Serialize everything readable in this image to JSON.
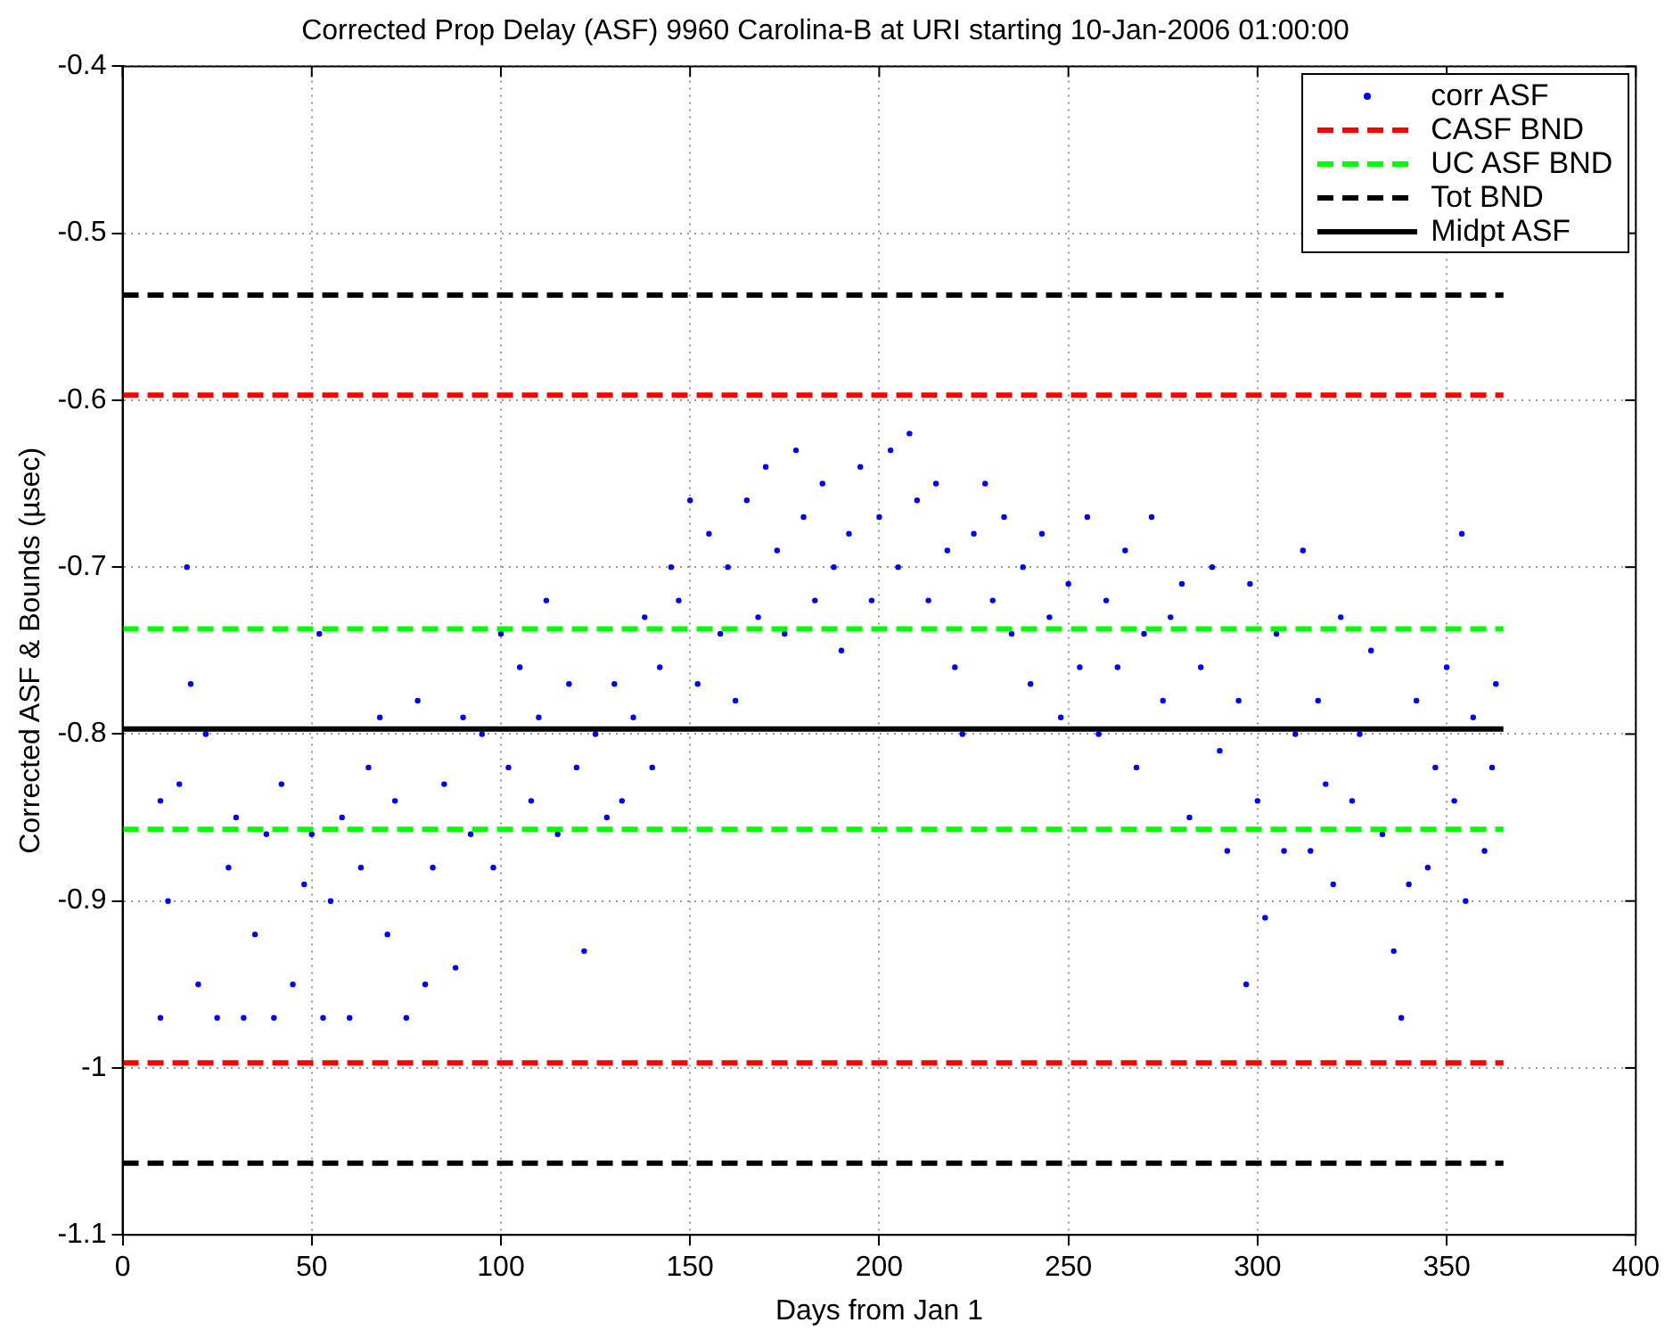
{
  "chart_data": {
    "type": "scatter",
    "title": "Corrected Prop Delay (ASF) 9960 Carolina-B at URI starting 10-Jan-2006 01:00:00",
    "xlabel": "Days from Jan 1",
    "ylabel": "Corrected ASF & Bounds (µsec)",
    "xlim": [
      0,
      400
    ],
    "xticks": [
      0,
      50,
      100,
      150,
      200,
      250,
      300,
      350,
      400
    ],
    "ylim": [
      -1.1,
      -0.4
    ],
    "yticks": [
      -1.1,
      -1,
      -0.9,
      -0.8,
      -0.7,
      -0.6,
      -0.5,
      -0.4
    ],
    "grid": true,
    "legend": "top right",
    "series": [
      {
        "name": "corr ASF",
        "type": "scatter",
        "marker": "circle",
        "color": "#0000ff",
        "x": [
          10,
          10,
          12,
          15,
          17,
          18,
          20,
          22,
          25,
          28,
          30,
          32,
          35,
          38,
          40,
          42,
          45,
          48,
          50,
          52,
          53,
          55,
          58,
          60,
          63,
          65,
          68,
          70,
          72,
          75,
          78,
          80,
          82,
          85,
          88,
          90,
          92,
          95,
          98,
          100,
          102,
          105,
          108,
          110,
          112,
          115,
          118,
          120,
          122,
          125,
          128,
          130,
          132,
          135,
          138,
          140,
          142,
          145,
          147,
          150,
          152,
          155,
          158,
          160,
          162,
          165,
          168,
          170,
          173,
          175,
          178,
          180,
          183,
          185,
          188,
          190,
          192,
          195,
          198,
          200,
          203,
          205,
          208,
          210,
          213,
          215,
          218,
          220,
          222,
          225,
          228,
          230,
          233,
          235,
          238,
          240,
          243,
          245,
          248,
          250,
          253,
          255,
          258,
          260,
          263,
          265,
          268,
          270,
          272,
          275,
          277,
          280,
          282,
          285,
          288,
          290,
          292,
          295,
          297,
          298,
          300,
          302,
          305,
          307,
          310,
          312,
          314,
          316,
          318,
          320,
          322,
          325,
          327,
          330,
          333,
          336,
          338,
          340,
          342,
          345,
          347,
          350,
          352,
          354,
          355,
          357,
          360,
          362,
          363
        ],
        "values": [
          -0.84,
          -0.97,
          -0.9,
          -0.83,
          -0.7,
          -0.77,
          -0.95,
          -0.8,
          -0.97,
          -0.88,
          -0.85,
          -0.97,
          -0.92,
          -0.86,
          -0.97,
          -0.83,
          -0.95,
          -0.89,
          -0.86,
          -0.74,
          -0.97,
          -0.9,
          -0.85,
          -0.97,
          -0.88,
          -0.82,
          -0.79,
          -0.92,
          -0.84,
          -0.97,
          -0.78,
          -0.95,
          -0.88,
          -0.83,
          -0.94,
          -0.79,
          -0.86,
          -0.8,
          -0.88,
          -0.74,
          -0.82,
          -0.76,
          -0.84,
          -0.79,
          -0.72,
          -0.86,
          -0.77,
          -0.82,
          -0.93,
          -0.8,
          -0.85,
          -0.77,
          -0.84,
          -0.79,
          -0.73,
          -0.82,
          -0.76,
          -0.7,
          -0.72,
          -0.66,
          -0.77,
          -0.68,
          -0.74,
          -0.7,
          -0.78,
          -0.66,
          -0.73,
          -0.64,
          -0.69,
          -0.74,
          -0.63,
          -0.67,
          -0.72,
          -0.65,
          -0.7,
          -0.75,
          -0.68,
          -0.64,
          -0.72,
          -0.67,
          -0.63,
          -0.7,
          -0.62,
          -0.66,
          -0.72,
          -0.65,
          -0.69,
          -0.76,
          -0.8,
          -0.68,
          -0.65,
          -0.72,
          -0.67,
          -0.74,
          -0.7,
          -0.77,
          -0.68,
          -0.73,
          -0.79,
          -0.71,
          -0.76,
          -0.67,
          -0.8,
          -0.72,
          -0.76,
          -0.69,
          -0.82,
          -0.74,
          -0.67,
          -0.78,
          -0.73,
          -0.71,
          -0.85,
          -0.76,
          -0.7,
          -0.81,
          -0.87,
          -0.78,
          -0.95,
          -0.71,
          -0.84,
          -0.91,
          -0.74,
          -0.87,
          -0.8,
          -0.69,
          -0.87,
          -0.78,
          -0.83,
          -0.89,
          -0.73,
          -0.84,
          -0.8,
          -0.75,
          -0.86,
          -0.93,
          -0.97,
          -0.89,
          -0.78,
          -0.88,
          -0.82,
          -0.76,
          -0.84,
          -0.68,
          -0.9,
          -0.79,
          -0.87,
          -0.82,
          -0.77
        ]
      },
      {
        "name": "CASF BND",
        "type": "line",
        "line_style": "dashed",
        "color": "#ff0000",
        "x": [
          0,
          365
        ],
        "values": [
          -0.597,
          -0.597
        ]
      },
      {
        "type": "line",
        "line_style": "dashed",
        "color": "#ff0000",
        "x": [
          0,
          365
        ],
        "values": [
          -0.997,
          -0.997
        ]
      },
      {
        "name": "UC ASF BND",
        "type": "line",
        "line_style": "dashed",
        "color": "#00ff00",
        "x": [
          0,
          365
        ],
        "values": [
          -0.737,
          -0.737
        ]
      },
      {
        "type": "line",
        "line_style": "dashed",
        "color": "#00ff00",
        "x": [
          0,
          365
        ],
        "values": [
          -0.857,
          -0.857
        ]
      },
      {
        "name": "Tot BND",
        "type": "line",
        "line_style": "dashed",
        "color": "#000000",
        "x": [
          0,
          365
        ],
        "values": [
          -0.537,
          -0.537
        ]
      },
      {
        "type": "line",
        "line_style": "dashed",
        "color": "#000000",
        "x": [
          0,
          365
        ],
        "values": [
          -1.057,
          -1.057
        ]
      },
      {
        "name": "Midpt ASF",
        "type": "line",
        "line_style": "solid",
        "color": "#000000",
        "x": [
          0,
          365
        ],
        "values": [
          -0.797,
          -0.797
        ]
      }
    ]
  }
}
